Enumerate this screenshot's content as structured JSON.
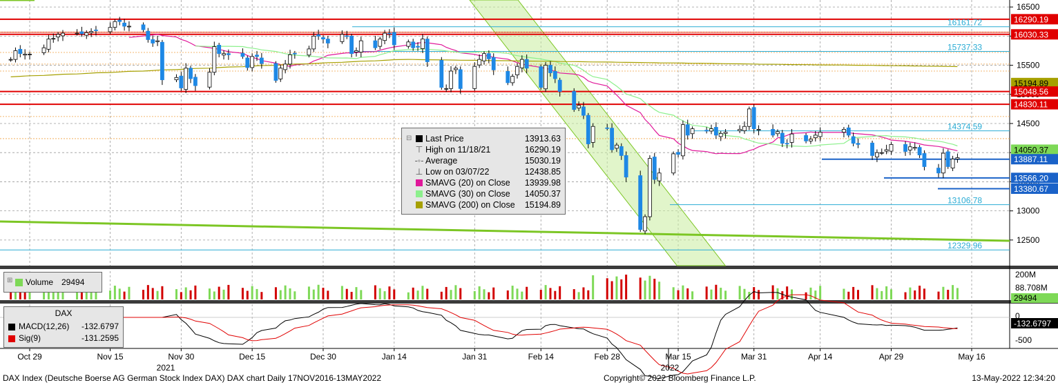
{
  "chart_data": [
    {
      "type": "candlestick",
      "instrument": "DAX Index",
      "x": [
        "2021-10-25",
        "2021-10-26",
        "2021-10-27",
        "2021-10-28",
        "2021-10-29",
        "2021-11-01",
        "2021-11-02",
        "2021-11-03",
        "2021-11-04",
        "2021-11-05",
        "2021-11-08",
        "2021-11-09",
        "2021-11-10",
        "2021-11-11",
        "2021-11-12",
        "2021-11-15",
        "2021-11-16",
        "2021-11-17",
        "2021-11-18",
        "2021-11-19",
        "2021-11-22",
        "2021-11-23",
        "2021-11-24",
        "2021-11-25",
        "2021-11-26",
        "2021-11-29",
        "2021-11-30",
        "2021-12-01",
        "2021-12-02",
        "2021-12-03",
        "2021-12-06",
        "2021-12-07",
        "2021-12-08",
        "2021-12-09",
        "2021-12-10",
        "2021-12-13",
        "2021-12-14",
        "2021-12-15",
        "2021-12-16",
        "2021-12-17",
        "2021-12-20",
        "2021-12-21",
        "2021-12-22",
        "2021-12-23",
        "2021-12-24",
        "2021-12-27",
        "2021-12-28",
        "2021-12-29",
        "2021-12-30",
        "2021-12-31",
        "2022-01-03",
        "2022-01-04",
        "2022-01-05",
        "2022-01-06",
        "2022-01-07",
        "2022-01-10",
        "2022-01-11",
        "2022-01-12",
        "2022-01-13",
        "2022-01-14",
        "2022-01-17",
        "2022-01-18",
        "2022-01-19",
        "2022-01-20",
        "2022-01-21",
        "2022-01-24",
        "2022-01-25",
        "2022-01-26",
        "2022-01-27",
        "2022-01-28",
        "2022-01-31",
        "2022-02-01",
        "2022-02-02",
        "2022-02-03",
        "2022-02-04",
        "2022-02-07",
        "2022-02-08",
        "2022-02-09",
        "2022-02-10",
        "2022-02-11",
        "2022-02-14",
        "2022-02-15",
        "2022-02-16",
        "2022-02-17",
        "2022-02-18",
        "2022-02-21",
        "2022-02-22",
        "2022-02-23",
        "2022-02-24",
        "2022-02-25",
        "2022-02-28",
        "2022-03-01",
        "2022-03-02",
        "2022-03-03",
        "2022-03-04",
        "2022-03-07",
        "2022-03-08",
        "2022-03-09",
        "2022-03-10",
        "2022-03-11",
        "2022-03-14",
        "2022-03-15",
        "2022-03-16",
        "2022-03-17",
        "2022-03-18",
        "2022-03-21",
        "2022-03-22",
        "2022-03-23",
        "2022-03-24",
        "2022-03-25",
        "2022-03-28",
        "2022-03-29",
        "2022-03-30",
        "2022-03-31",
        "2022-04-01",
        "2022-04-04",
        "2022-04-05",
        "2022-04-06",
        "2022-04-07",
        "2022-04-08",
        "2022-04-11",
        "2022-04-12",
        "2022-04-13",
        "2022-04-14",
        "2022-04-19",
        "2022-04-20",
        "2022-04-21",
        "2022-04-22",
        "2022-04-25",
        "2022-04-26",
        "2022-04-27",
        "2022-04-28",
        "2022-04-29",
        "2022-05-02",
        "2022-05-03",
        "2022-05-04",
        "2022-05-05",
        "2022-05-06",
        "2022-05-09",
        "2022-05-10",
        "2022-05-11",
        "2022-05-12",
        "2022-05-13"
      ],
      "close": [
        15600,
        15750,
        15700,
        15690,
        15690,
        15800,
        15950,
        15960,
        16030,
        16050,
        16050,
        16040,
        16060,
        16080,
        16100,
        16150,
        16250,
        16250,
        16170,
        16170,
        16110,
        15940,
        15880,
        15920,
        15250,
        15290,
        15110,
        15450,
        15270,
        15150,
        15380,
        15820,
        15700,
        15700,
        15680,
        15650,
        15460,
        15650,
        15650,
        15530,
        15240,
        15450,
        15520,
        15680,
        15700,
        15780,
        16000,
        16000,
        15950,
        15880,
        16030,
        16000,
        15700,
        15750,
        15920,
        15800,
        15950,
        16050,
        16040,
        15850,
        15900,
        15800,
        15810,
        15950,
        15560,
        15120,
        15100,
        15400,
        15450,
        15100,
        15480,
        15600,
        15700,
        15610,
        15420,
        15200,
        15310,
        15480,
        15600,
        15450,
        15120,
        15500,
        15370,
        15270,
        15050,
        14740,
        14810,
        14640,
        14150,
        14450,
        14420,
        14050,
        14130,
        13950,
        13580,
        12680,
        12900,
        13900,
        13540,
        13650,
        13980,
        13970,
        14480,
        14300,
        14410,
        14370,
        14410,
        14300,
        14330,
        14350,
        14400,
        14450,
        14750,
        14410,
        14400,
        14300,
        14360,
        14160,
        14150,
        14320,
        14200,
        14230,
        14300,
        14350,
        14400,
        14300,
        14160,
        14140,
        13950,
        14000,
        14000,
        14050,
        14140,
        14020,
        14100,
        14090,
        13960,
        13760,
        13650,
        13990,
        13760,
        13890,
        13913.63
      ],
      "price_axis_ticks": [
        12500,
        13000,
        13500,
        14000,
        14500,
        15000,
        15500,
        16000,
        16500
      ],
      "x_tick_labels": [
        "Oct 29",
        "Nov 15",
        "Nov 30",
        "Dec 15",
        "Dec 30",
        "Jan 14",
        "Jan 31",
        "Feb 14",
        "Feb 28",
        "Mar 15",
        "Mar 31",
        "Apr 14",
        "Apr 29",
        "May 16"
      ],
      "year_labels": [
        "2021",
        "2022"
      ],
      "levels": [
        {
          "value": 16290.19,
          "label": "16290.19",
          "color": "#e00000"
        },
        {
          "value": 16161.72,
          "label": "16161.72",
          "color": "#29abd4"
        },
        {
          "value": 16030.33,
          "label": "16030.33",
          "color": "#e00000"
        },
        {
          "value": 15737.33,
          "label": "15737.33",
          "color": "#29abd4"
        },
        {
          "value": 15194.89,
          "label": "15194.89",
          "color": "#a6a000"
        },
        {
          "value": 15048.56,
          "label": "15048.56",
          "color": "#e00000"
        },
        {
          "value": 14830.11,
          "label": "14830.11",
          "color": "#e00000"
        },
        {
          "value": 14374.59,
          "label": "14374.59",
          "color": "#29abd4"
        },
        {
          "value": 14050.37,
          "label": "14050.37",
          "color": "#7ed957"
        },
        {
          "value": 13887.11,
          "label": "13887.11",
          "color": "#1a62c8"
        },
        {
          "value": 13566.2,
          "label": "13566.20",
          "color": "#1a62c8"
        },
        {
          "value": 13380.67,
          "label": "13380.67",
          "color": "#1a62c8"
        },
        {
          "value": 13106.78,
          "label": "13106.78",
          "color": "#29abd4"
        },
        {
          "value": 12329.96,
          "label": "12329.96",
          "color": "#29abd4"
        }
      ],
      "legend": [
        {
          "label": "Last Price",
          "value": "13913.63",
          "color": "#000000",
          "marker": "box"
        },
        {
          "label": "High on 11/18/21",
          "value": "16290.19",
          "marker": "high"
        },
        {
          "label": "Average",
          "value": "15030.19",
          "marker": "avg"
        },
        {
          "label": "Low on 03/07/22",
          "value": "12438.85",
          "marker": "low"
        },
        {
          "label": "SMAVG (20)  on Close",
          "value": "13939.98",
          "color": "#e0189a",
          "marker": "box"
        },
        {
          "label": "SMAVG (30)  on Close",
          "value": "14050.37",
          "color": "#8cf08c",
          "marker": "box"
        },
        {
          "label": "SMAVG (200)  on Close",
          "value": "15194.89",
          "color": "#a6a000",
          "marker": "box"
        }
      ],
      "colors": {
        "up": "#ffffff",
        "down": "#1e88e5",
        "sma20": "#e0189a",
        "sma30": "#8cf08c",
        "sma200": "#a6a000",
        "channel": "#c8ec9e",
        "channel_edge": "#7cc624"
      }
    },
    {
      "type": "bar",
      "title": "Volume",
      "legend": {
        "label": "Volume",
        "value": "29494",
        "color": "#7ed957"
      },
      "axis_ticks": [
        "200M",
        "88.708M",
        "29494"
      ],
      "colors": {
        "up": "#7ed957",
        "down": "#d20000"
      }
    },
    {
      "type": "line",
      "title": "DAX",
      "series": [
        {
          "name": "MACD(12,26)",
          "value": "-132.6797",
          "color": "#000000"
        },
        {
          "name": "Sig(9)",
          "value": "-131.2595",
          "color": "#e00000"
        }
      ],
      "axis_ticks": [
        "0",
        "-500"
      ],
      "last_value": "-132.6797"
    }
  ],
  "footer": {
    "left": "DAX Index (Deutsche Boerse AG German Stock Index DAX) DAX chart  Daily 17NOV2016-13MAY2022",
    "center": "Copyright© 2022 Bloomberg Finance L.P.",
    "right": "13-May-2022 12:34:20"
  }
}
